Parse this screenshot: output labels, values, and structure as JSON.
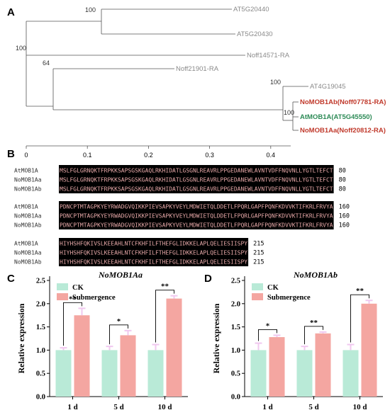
{
  "panels": {
    "a": "A",
    "b": "B",
    "c": "C",
    "d": "D"
  },
  "tree": {
    "leaves": [
      {
        "label": "AT5G20440",
        "style": "plain"
      },
      {
        "label": "AT5G20430",
        "style": "plain"
      },
      {
        "label": "Noff14571-RA",
        "style": "plain"
      },
      {
        "label": "Noff21901-RA",
        "style": "plain"
      },
      {
        "label": "AT4G19045",
        "style": "plain"
      },
      {
        "label": "NoMOB1Ab(Noff07781-RA)",
        "style": "red"
      },
      {
        "label": "AtMOB1A(AT5G45550)",
        "style": "green"
      },
      {
        "label": "NoMOB1Aa(Noff20812-RA)",
        "style": "red"
      }
    ],
    "bootstrap": [
      "100",
      "100",
      "64",
      "100",
      "100"
    ],
    "scale": {
      "ticks": [
        0,
        0.1,
        0.2,
        0.3,
        0.4
      ],
      "tick_labels": [
        "0",
        "0.1",
        "0.2",
        "0.3",
        "0.4"
      ]
    }
  },
  "alignment": {
    "blocks": [
      {
        "end": "80",
        "rows": [
          {
            "name": "AtMOB1A",
            "seq": "MSLFGLGRNQKTFRPKKSAPSGSKGAQLRKHIDATLGSGNLREAVRLPPGEDANEWLAVNTVDFFNQVNLLYGTLTEFCT"
          },
          {
            "name": "NoMOB1Aa",
            "seq": "MSLFGLGRNQKTFRPKKSAPSGSKGAQLRKHIDATLGSGNLREAVRLPPGEDANEWLAVNTVDFFNQVNLLYGTLTEFCT"
          },
          {
            "name": "NoMOB1Ab",
            "seq": "MSLFGLGRNQKTFRPKKSAPSGSKGAQLRKHIDATLGSGNLREAVRLPPGEDANEWLAVNTVDFFNQVNLLYGTLTEFCT"
          }
        ]
      },
      {
        "end": "160",
        "rows": [
          {
            "name": "AtMOB1A",
            "seq": "PDNCPTMTAGPKYEYRWADGVQIKKPIEVSAPKYVEYLMDWIETQLDDETLFPQRLGAPFPQNFKDVVKTIFKRLFRVYA"
          },
          {
            "name": "NoMOB1Aa",
            "seq": "PDNCPTMTAGPKYEYRWADGVQIKKPIEVSAPKYVEYLMDWIETQLDDETLFPQRLGAPFPQNFKDVVKTIFKRLFRVYA"
          },
          {
            "name": "NoMOB1Ab",
            "seq": "PDNCPTMTAGPKYEYRWADGVQIKKPIEVSAPKYVEYLMDWIETQLDDETLFPQRLGAPFPQNFKDVVKTIFKRLFRVYA"
          }
        ]
      },
      {
        "end": "215",
        "rows": [
          {
            "name": "AtMOB1A",
            "seq": "HIYHSHFQKIVSLKEEAHLNTCFKHFILFTHEFGLIDKKELAPLQELIESIISPY"
          },
          {
            "name": "NoMOB1Aa",
            "seq": "HIYHSHFQKIVSLKEEAHLNTCFKHFILFTHEFGLIDKKELAPLQELIESIISPY"
          },
          {
            "name": "NoMOB1Ab",
            "seq": "HIYHSHFQKIVSLKEEAHLNTCFKHFILFTHEFGLIDKKELAPLQELIESIISPY"
          }
        ]
      }
    ]
  },
  "colors": {
    "ck": "#b9ead7",
    "submergence": "#f4a6a1",
    "error_bar": "#f0c8ef",
    "seq_bg": "#000000",
    "seq_text": "#e8a9a9"
  },
  "chart_data": [
    {
      "type": "bar",
      "title": "NoMOB1Aa",
      "ylabel": "Relative expression",
      "ylim": [
        0.0,
        2.5
      ],
      "yticks": [
        0.0,
        0.5,
        1.0,
        1.5,
        2.0,
        2.5
      ],
      "ytick_labels": [
        "0.0",
        "0.5",
        "1.0",
        "1.5",
        "2.0",
        "2.5"
      ],
      "categories": [
        "1 d",
        "5 d",
        "10 d"
      ],
      "series": [
        {
          "name": "CK",
          "values": [
            1.0,
            1.0,
            1.0
          ],
          "errors": [
            0.05,
            0.08,
            0.12
          ]
        },
        {
          "name": "Submergence",
          "values": [
            1.75,
            1.32,
            2.11
          ],
          "errors": [
            0.15,
            0.1,
            0.06
          ]
        }
      ],
      "significance": [
        "**",
        "*",
        "**"
      ],
      "legend_position": "top-left"
    },
    {
      "type": "bar",
      "title": "NoMOB1Ab",
      "ylabel": "Relative expression",
      "ylim": [
        0.0,
        2.5
      ],
      "yticks": [
        0.0,
        0.5,
        1.0,
        1.5,
        2.0,
        2.5
      ],
      "ytick_labels": [
        "0.0",
        "0.5",
        "1.0",
        "1.5",
        "2.0",
        "2.5"
      ],
      "categories": [
        "1 d",
        "5 d",
        "10 d"
      ],
      "series": [
        {
          "name": "CK",
          "values": [
            1.0,
            1.0,
            1.0
          ],
          "errors": [
            0.15,
            0.08,
            0.12
          ]
        },
        {
          "name": "Submergence",
          "values": [
            1.28,
            1.36,
            2.0
          ],
          "errors": [
            0.04,
            0.03,
            0.07
          ]
        }
      ],
      "significance": [
        "*",
        "**",
        "**"
      ],
      "legend_position": "top-left"
    }
  ]
}
